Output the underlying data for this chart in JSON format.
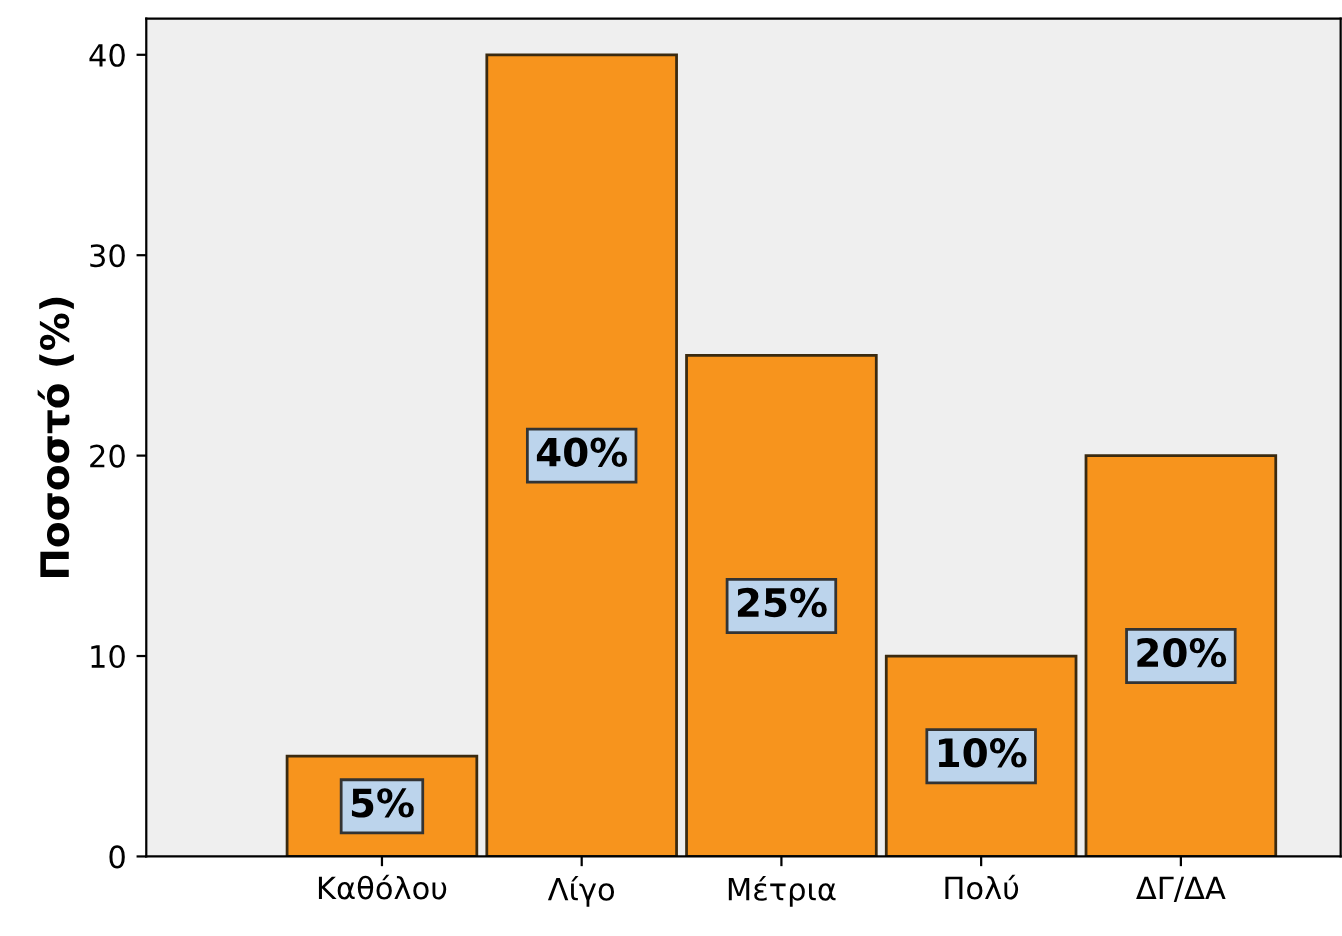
{
  "chart_data": {
    "type": "bar",
    "ylabel": "Ποσοστό (%)",
    "categories": [
      "Καθόλου",
      "Λίγο",
      "Μέτρια",
      "Πολύ",
      "ΔΓ/ΔΑ"
    ],
    "values": [
      5,
      40,
      25,
      10,
      20
    ],
    "value_labels": [
      "5%",
      "40%",
      "25%",
      "10%",
      "20%"
    ],
    "color": "#f7941d",
    "ylim": [
      0,
      41.8
    ],
    "yticks": [
      0,
      10,
      20,
      30,
      40
    ],
    "grid": false
  }
}
